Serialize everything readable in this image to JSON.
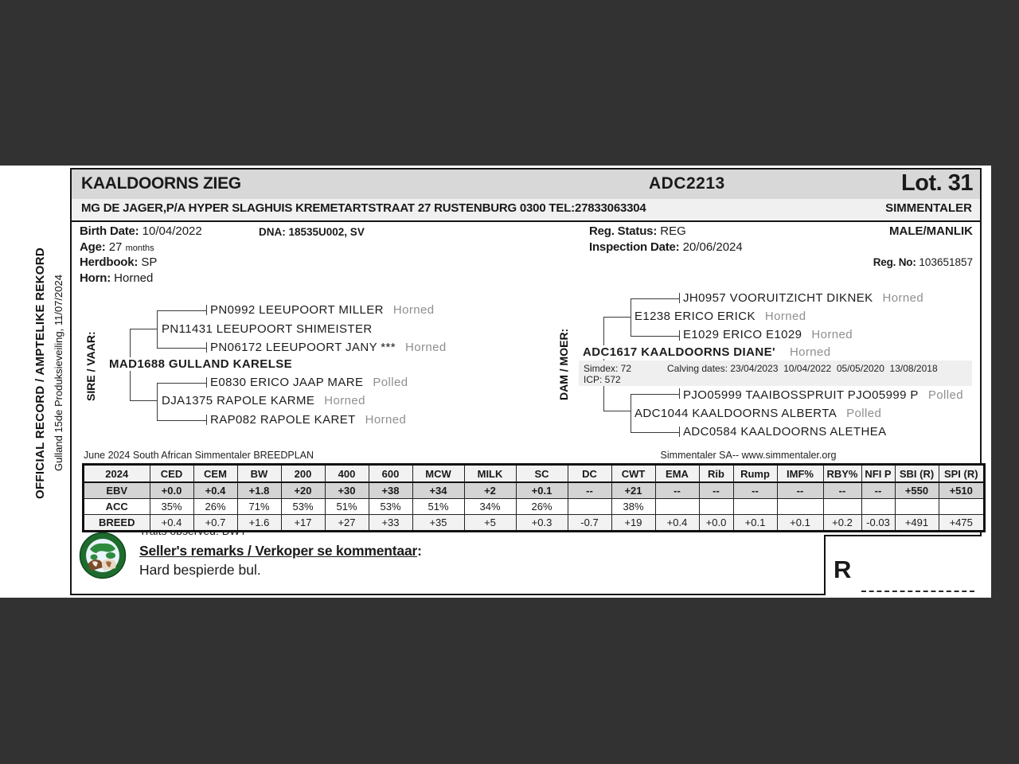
{
  "sidebar": {
    "official": "OFFICIAL RECORD / AMPTELIKE REKORD",
    "event": "Gulland 15de Produksieveiling, 11/07/2024"
  },
  "header": {
    "animal_name": "KAALDOORNS ZIEG",
    "animal_id": "ADC2213",
    "lot": "Lot. 31"
  },
  "subheader": {
    "owner": "MG DE JAGER,P/A HYPER SLAGHUIS KREMETARTSTRAAT 27 RUSTENBURG 0300 TEL:27833063304",
    "breed": "SIMMENTALER"
  },
  "details": {
    "birth_date_label": "Birth Date:",
    "birth_date": "10/04/2022",
    "dna": "DNA: 18535U002, SV",
    "age_label": "Age:",
    "age_value": "27",
    "age_unit": "months",
    "herdbook_label": "Herdbook:",
    "herdbook": "SP",
    "horn_label": "Horn:",
    "horn": "Horned",
    "reg_status_label": "Reg. Status:",
    "reg_status": "REG",
    "inspection_label": "Inspection Date:",
    "inspection_date": "20/06/2024",
    "sex": "MALE/MANLIK",
    "reg_no_label": "Reg. No:",
    "reg_no": "103651857"
  },
  "sire_tree": {
    "label": "SIRE / VAAR:",
    "main": {
      "name": "MAD1688 GULLAND KARELSE",
      "horn": ""
    },
    "sire": {
      "name": "PN11431 LEEUPOORT SHIMEISTER",
      "horn": ""
    },
    "sire_sire": {
      "name": "PN0992 LEEUPOORT MILLER",
      "horn": "Horned"
    },
    "sire_dam": {
      "name": "PN06172 LEEUPOORT JANY ***",
      "horn": "Horned"
    },
    "dam": {
      "name": "DJA1375 RAPOLE KARME",
      "horn": "Horned"
    },
    "dam_sire": {
      "name": "E0830 ERICO JAAP MARE",
      "horn": "Polled"
    },
    "dam_dam": {
      "name": "RAP082 RAPOLE KARET",
      "horn": "Horned"
    }
  },
  "dam_tree": {
    "label": "DAM / MOER:",
    "main": {
      "name": "ADC1617 KAALDOORNS DIANE'",
      "horn": "Horned"
    },
    "simdex": "Simdex: 72",
    "icp": "ICP: 572",
    "calving": "Calving dates: 23/04/2023  10/04/2022  05/05/2020  13/08/2018",
    "sire": {
      "name": "E1238 ERICO ERICK",
      "horn": "Horned"
    },
    "sire_sire": {
      "name": "JH0957 VOORUITZICHT DIKNEK",
      "horn": "Horned"
    },
    "sire_dam": {
      "name": "E1029 ERICO E1029",
      "horn": "Horned"
    },
    "dam": {
      "name": "ADC1044 KAALDOORNS ALBERTA",
      "horn": "Polled"
    },
    "dam_sire": {
      "name": "PJO05999 TAAIBOSSPRUIT PJO05999 P",
      "horn": "Polled"
    },
    "dam_dam": {
      "name": "ADC0584 KAALDOORNS ALETHEA",
      "horn": ""
    }
  },
  "breedplan": {
    "caption_left": "June 2024 South African Simmentaler BREEDPLAN",
    "caption_right": "Simmentaler SA-- www.simmentaler.org",
    "columns": [
      "2024",
      "CED",
      "CEM",
      "BW",
      "200",
      "400",
      "600",
      "MCW",
      "MILK",
      "SC",
      "DC",
      "CWT",
      "EMA",
      "Rib",
      "Rump",
      "IMF%",
      "RBY%",
      "NFI P",
      "SBI (R)",
      "SPI (R)"
    ],
    "rows": [
      {
        "label": "EBV",
        "values": [
          "+0.0",
          "+0.4",
          "+1.8",
          "+20",
          "+30",
          "+38",
          "+34",
          "+2",
          "+0.1",
          "--",
          "+21",
          "--",
          "--",
          "--",
          "--",
          "--",
          "--",
          "+550",
          "+510"
        ]
      },
      {
        "label": "ACC",
        "values": [
          "35%",
          "26%",
          "71%",
          "53%",
          "51%",
          "53%",
          "51%",
          "34%",
          "26%",
          "",
          "38%",
          "",
          "",
          "",
          "",
          "",
          "",
          "",
          ""
        ]
      },
      {
        "label": "BREED",
        "values": [
          "+0.4",
          "+0.7",
          "+1.6",
          "+17",
          "+27",
          "+33",
          "+35",
          "+5",
          "+0.3",
          "-0.7",
          "+19",
          "+0.4",
          "+0.0",
          "+0.1",
          "+0.1",
          "+0.2",
          "-0.03",
          "+491",
          "+475"
        ]
      }
    ]
  },
  "footer": {
    "traits": "Traits observed: BWT",
    "remarks_label": "Seller's remarks / Verkoper se kommentaar",
    "remarks_colon": ":",
    "remarks_text": "Hard bespierde bul.",
    "currency": "R"
  },
  "colors": {
    "background": "#323232",
    "titlebar": "#d8d8d8",
    "bar_light": "#f0f0f0",
    "ebv_row": "#d4d4d4",
    "band": "#efefef",
    "horn_gray": "#8f8f8f",
    "logo_green": "#1f6b2e"
  }
}
